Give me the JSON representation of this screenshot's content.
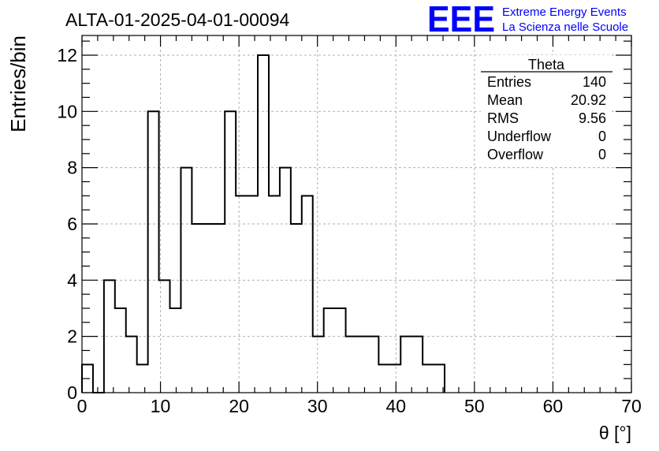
{
  "header": {
    "run_title": "ALTA-01-2025-04-01-00094",
    "logo_text": "EEE",
    "logo_line1": "Extreme Energy Events",
    "logo_line2": "La Scienza nelle Scuole"
  },
  "stats_box": {
    "title": "Theta",
    "rows": [
      {
        "label": "Entries",
        "value": "140"
      },
      {
        "label": "Mean",
        "value": "20.92"
      },
      {
        "label": "RMS",
        "value": "9.56"
      },
      {
        "label": "Underflow",
        "value": "0"
      },
      {
        "label": "Overflow",
        "value": "0"
      }
    ]
  },
  "colors": {
    "logo": "#0000ff",
    "line": "#000000",
    "grid": "#b0b0b0"
  },
  "chart_data": {
    "type": "histogram",
    "title": "ALTA-01-2025-04-01-00094",
    "xlabel": "θ [°]",
    "ylabel": "Entries/bin",
    "xlim": [
      0,
      70
    ],
    "ylim": [
      0,
      12.7
    ],
    "xticks": [
      "0",
      "10",
      "20",
      "30",
      "40",
      "50",
      "60",
      "70"
    ],
    "yticks": [
      "0",
      "2",
      "4",
      "6",
      "8",
      "10",
      "12"
    ],
    "grid": true,
    "bin_width": 1.4,
    "bin_start": 0,
    "values": [
      1,
      0,
      4,
      3,
      2,
      1,
      10,
      4,
      3,
      8,
      6,
      6,
      6,
      10,
      7,
      7,
      12,
      7,
      8,
      6,
      7,
      2,
      3,
      3,
      2,
      2,
      2,
      1,
      1,
      2,
      2,
      1,
      1
    ]
  }
}
